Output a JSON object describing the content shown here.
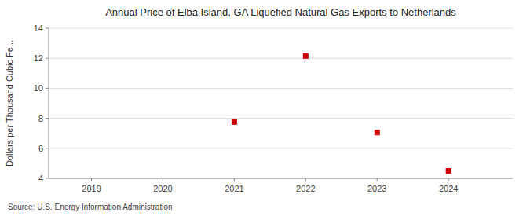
{
  "chart_data": {
    "type": "scatter",
    "title": "Annual Price of Elba Island, GA Liquefied Natural Gas Exports to Netherlands",
    "y_label": "Dollars per Thousand Cubic Fe...",
    "annotations": [
      "Source: U.S. Energy Information Administration"
    ],
    "x": [
      2021,
      2022,
      2023,
      2024
    ],
    "values": [
      7.75,
      12.15,
      7.05,
      4.5
    ],
    "color": "#cc0000",
    "marker": "square",
    "xlim": [
      2018.4,
      2024.9
    ],
    "ylim": [
      4,
      14
    ],
    "xticks": [
      2019,
      2020,
      2021,
      2022,
      2023,
      2024
    ],
    "yticks": [
      4,
      6,
      8,
      10,
      12,
      14
    ],
    "grid": true
  }
}
